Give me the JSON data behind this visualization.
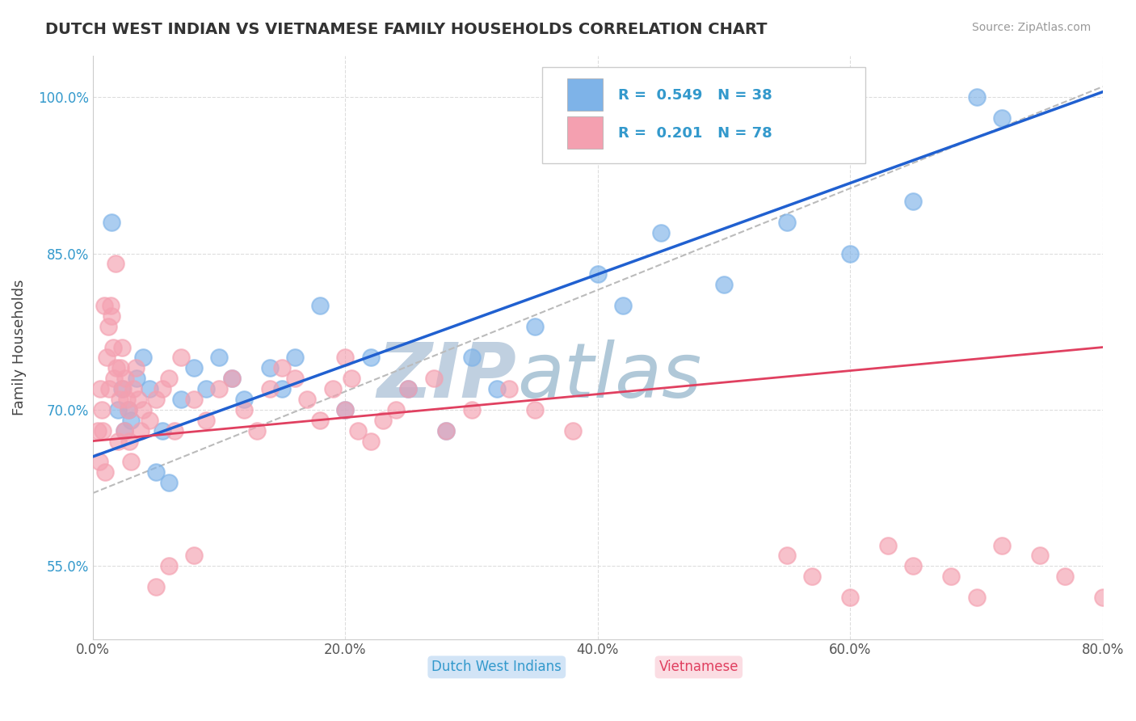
{
  "title": "DUTCH WEST INDIAN VS VIETNAMESE FAMILY HOUSEHOLDS CORRELATION CHART",
  "source": "Source: ZipAtlas.com",
  "xlabel_blue": "Dutch West Indians",
  "xlabel_pink": "Vietnamese",
  "ylabel": "Family Households",
  "xlim": [
    0.0,
    80.0
  ],
  "ylim": [
    48.0,
    104.0
  ],
  "xticks": [
    0.0,
    20.0,
    40.0,
    60.0,
    80.0
  ],
  "yticks": [
    55.0,
    70.0,
    85.0,
    100.0
  ],
  "ytick_labels": [
    "55.0%",
    "70.0%",
    "85.0%",
    "100.0%"
  ],
  "xtick_labels": [
    "0.0%",
    "20.0%",
    "40.0%",
    "60.0%",
    "80.0%"
  ],
  "R_blue": 0.549,
  "N_blue": 38,
  "R_pink": 0.201,
  "N_pink": 78,
  "blue_color": "#7eb3e8",
  "pink_color": "#f4a0b0",
  "blue_line_color": "#2060d0",
  "pink_line_color": "#e04060",
  "ref_line_color": "#bbbbbb",
  "watermark_zip_color": "#c0d0e0",
  "watermark_atlas_color": "#b0c8d8",
  "blue_x": [
    1.5,
    2.0,
    2.3,
    2.5,
    2.8,
    3.0,
    3.5,
    4.0,
    4.5,
    5.0,
    5.5,
    6.0,
    7.0,
    8.0,
    9.0,
    10.0,
    11.0,
    12.0,
    14.0,
    15.0,
    16.0,
    18.0,
    20.0,
    22.0,
    25.0,
    28.0,
    30.0,
    32.0,
    35.0,
    40.0,
    42.0,
    45.0,
    50.0,
    55.0,
    60.0,
    65.0,
    70.0,
    72.0
  ],
  "blue_y": [
    88.0,
    70.0,
    72.0,
    68.0,
    70.0,
    69.0,
    73.0,
    75.0,
    72.0,
    64.0,
    68.0,
    63.0,
    71.0,
    74.0,
    72.0,
    75.0,
    73.0,
    71.0,
    74.0,
    72.0,
    75.0,
    80.0,
    70.0,
    75.0,
    72.0,
    68.0,
    75.0,
    72.0,
    78.0,
    83.0,
    80.0,
    87.0,
    82.0,
    88.0,
    85.0,
    90.0,
    100.0,
    98.0
  ],
  "pink_x": [
    0.4,
    0.5,
    0.6,
    0.7,
    0.8,
    0.9,
    1.0,
    1.1,
    1.2,
    1.3,
    1.4,
    1.5,
    1.6,
    1.7,
    1.8,
    1.9,
    2.0,
    2.1,
    2.2,
    2.3,
    2.4,
    2.5,
    2.6,
    2.7,
    2.8,
    2.9,
    3.0,
    3.2,
    3.4,
    3.6,
    3.8,
    4.0,
    4.5,
    5.0,
    5.5,
    6.0,
    6.5,
    7.0,
    8.0,
    9.0,
    10.0,
    11.0,
    12.0,
    13.0,
    14.0,
    15.0,
    16.0,
    17.0,
    18.0,
    19.0,
    20.0,
    21.0,
    22.0,
    23.0,
    24.0,
    25.0,
    27.0,
    28.0,
    30.0,
    33.0,
    35.0,
    38.0,
    55.0,
    57.0,
    60.0,
    63.0,
    65.0,
    68.0,
    70.0,
    72.0,
    75.0,
    77.0,
    80.0,
    20.0,
    20.5,
    5.0,
    6.0,
    8.0
  ],
  "pink_y": [
    68.0,
    65.0,
    72.0,
    70.0,
    68.0,
    80.0,
    64.0,
    75.0,
    78.0,
    72.0,
    80.0,
    79.0,
    76.0,
    73.0,
    84.0,
    74.0,
    67.0,
    71.0,
    74.0,
    76.0,
    72.0,
    68.0,
    73.0,
    71.0,
    70.0,
    67.0,
    65.0,
    72.0,
    74.0,
    71.0,
    68.0,
    70.0,
    69.0,
    71.0,
    72.0,
    73.0,
    68.0,
    75.0,
    71.0,
    69.0,
    72.0,
    73.0,
    70.0,
    68.0,
    72.0,
    74.0,
    73.0,
    71.0,
    69.0,
    72.0,
    70.0,
    68.0,
    67.0,
    69.0,
    70.0,
    72.0,
    73.0,
    68.0,
    70.0,
    72.0,
    70.0,
    68.0,
    56.0,
    54.0,
    52.0,
    57.0,
    55.0,
    54.0,
    52.0,
    57.0,
    56.0,
    54.0,
    52.0,
    75.0,
    73.0,
    53.0,
    55.0,
    56.0
  ],
  "blue_trend_x": [
    0,
    80
  ],
  "blue_trend_y": [
    65.5,
    100.5
  ],
  "pink_trend_x": [
    0,
    80
  ],
  "pink_trend_y": [
    67.0,
    76.0
  ],
  "ref_line_x": [
    0,
    80
  ],
  "ref_line_y": [
    62.0,
    101.0
  ],
  "grid_color": "#dddddd",
  "background_color": "#ffffff"
}
